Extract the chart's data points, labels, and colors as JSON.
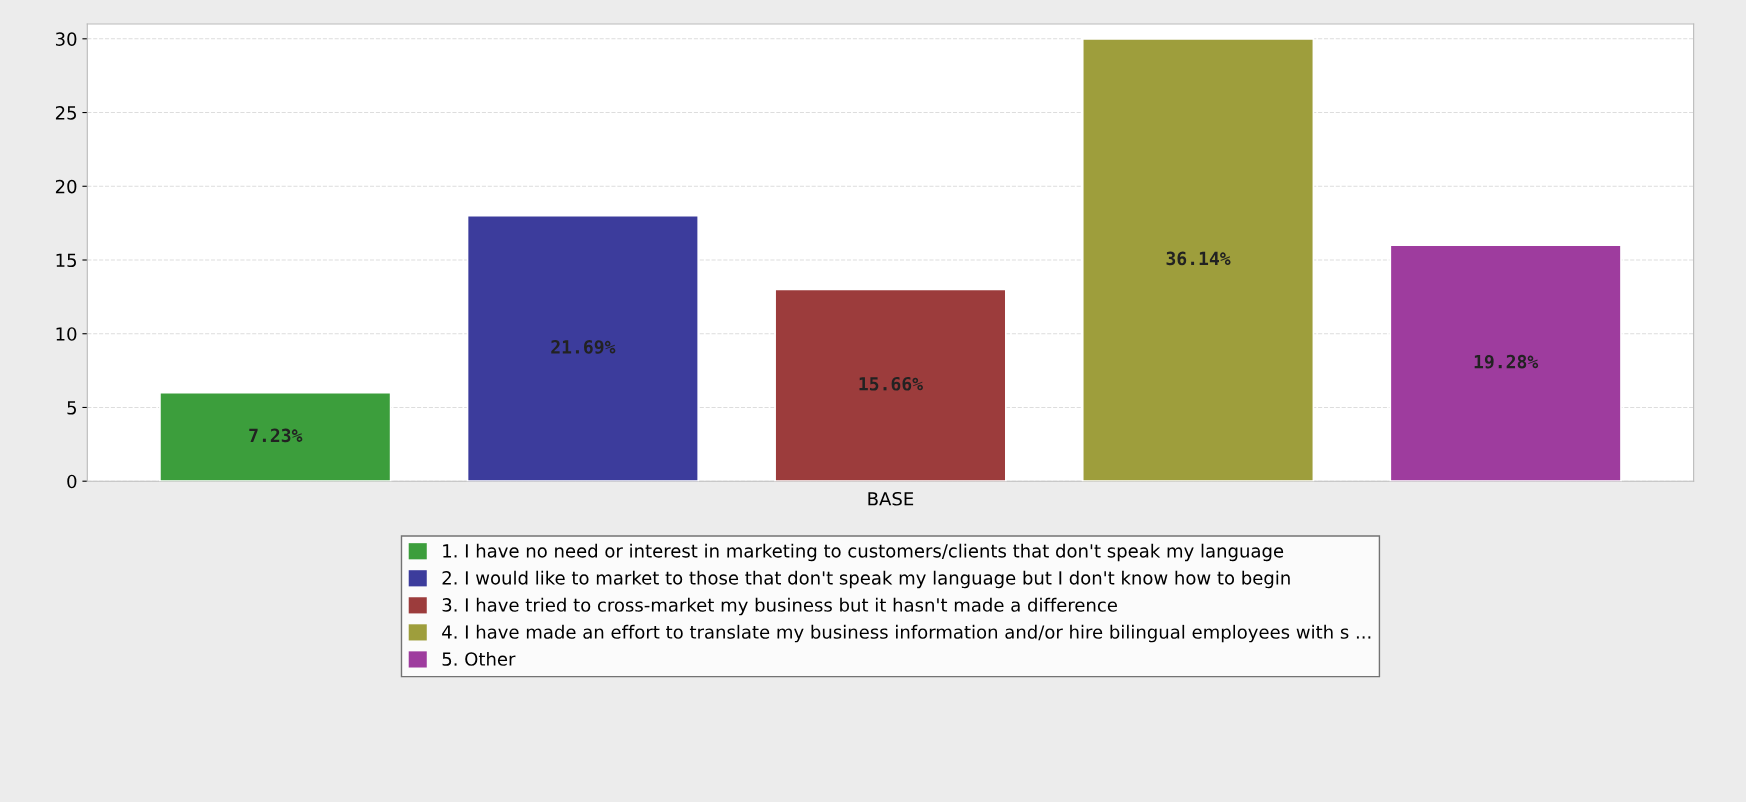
{
  "chart_data": {
    "type": "bar",
    "xlabel": "BASE",
    "categories": [
      null
    ],
    "series": [
      {
        "name": "1. I have no need or interest in marketing to customers/clients that don't speak my language",
        "color": "#3c9e3c",
        "values": [
          6
        ]
      },
      {
        "name": "2. I would like to market to those that don't speak my language but I don't know how to begin",
        "color": "#3c3c9c",
        "values": [
          18
        ]
      },
      {
        "name": "3. I have tried to cross-market my business but it hasn't made a difference",
        "color": "#9c3c3c",
        "values": [
          13
        ]
      },
      {
        "name": "4. I have made an effort to translate my business information and/or hire bilingual employees with s ...",
        "color": "#9e9e3c",
        "values": [
          30
        ]
      },
      {
        "name": "5. Other",
        "color": "#9e3c9e",
        "values": [
          16
        ]
      }
    ],
    "annotations": [
      "7.23%",
      "21.69%",
      "15.66%",
      "36.14%",
      "19.28%"
    ],
    "ylim": [
      0,
      31
    ],
    "yticks": [
      0,
      5,
      10,
      15,
      20,
      25,
      30
    ],
    "grid": "y",
    "legend": "bottom"
  }
}
